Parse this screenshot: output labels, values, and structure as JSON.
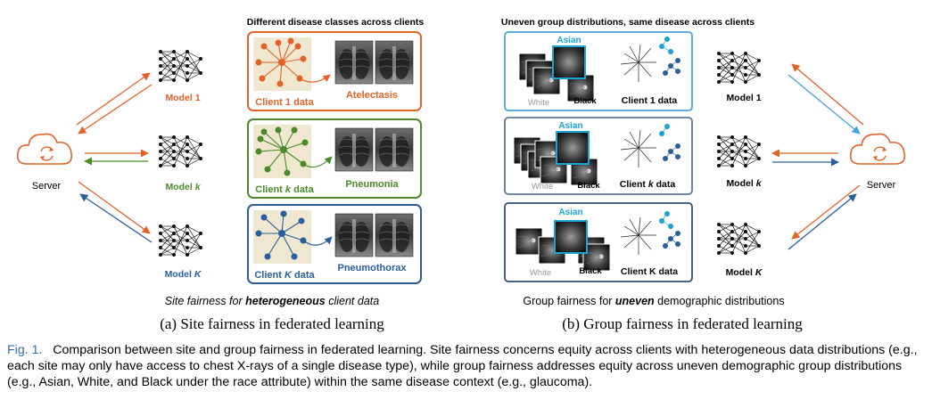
{
  "left_panel": {
    "header": "Different disease classes across clients",
    "server_label": "Server",
    "models": [
      "Model 1",
      "Model k",
      "Model K"
    ],
    "model_name_prefix": "Model",
    "model_suffixes": [
      "1",
      "k",
      "K"
    ],
    "clients": [
      {
        "data_prefix": "Client",
        "data_var": "1",
        "data_suffix": "data",
        "disease": "Atelectasis",
        "color": "#e2622a"
      },
      {
        "data_prefix": "Client",
        "data_var": "k",
        "data_suffix": "data",
        "disease": "Pneumonia",
        "color": "#4a8a2b"
      },
      {
        "data_prefix": "Client",
        "data_var": "K",
        "data_suffix": "data",
        "disease": "Pneumothorax",
        "color": "#2a5d9c"
      }
    ],
    "subtitle_pre": "Site fairness for ",
    "subtitle_emph": "heterogeneous",
    "subtitle_post": " client data",
    "caption": "(a) Site fairness in federated learning"
  },
  "right_panel": {
    "header": "Uneven group distributions, same  disease across clients",
    "server_label": "Server",
    "model_name_prefix": "Model",
    "model_suffixes": [
      "1",
      "k",
      "K"
    ],
    "clients": [
      {
        "label_pre": "Client 1 data",
        "var": "",
        "groups": [
          "Asian",
          "White",
          "Black"
        ]
      },
      {
        "label_pre": "Client ",
        "var": "k",
        "label_post": " data",
        "groups": [
          "Asian",
          "White",
          "Black"
        ]
      },
      {
        "label_pre": "Client K data",
        "var": "",
        "groups": [
          "Asian",
          "White",
          "Black"
        ]
      }
    ],
    "subtitle_pre": "Group fairness for ",
    "subtitle_emph": "uneven",
    "subtitle_post": " demographic distributions",
    "caption": "(b) Group fairness in federated learning"
  },
  "caption": {
    "number": "Fig. 1.",
    "text": "Comparison between site and group fairness in federated learning. Site fairness concerns equity across clients with heterogeneous data distributions (e.g., each site may only have access to chest X-rays of a single disease type), while group fairness addresses equity across uneven demographic group distributions (e.g., Asian, White, and Black under the race attribute) within the same disease context (e.g., glaucoma)."
  },
  "colors": {
    "orange": "#e2622a",
    "green": "#4a8a2b",
    "blue": "#2a5d9c",
    "light_blue": "#4aa3d9",
    "cyan": "#1ba3d6",
    "caption_blue": "#2f6eb5"
  }
}
